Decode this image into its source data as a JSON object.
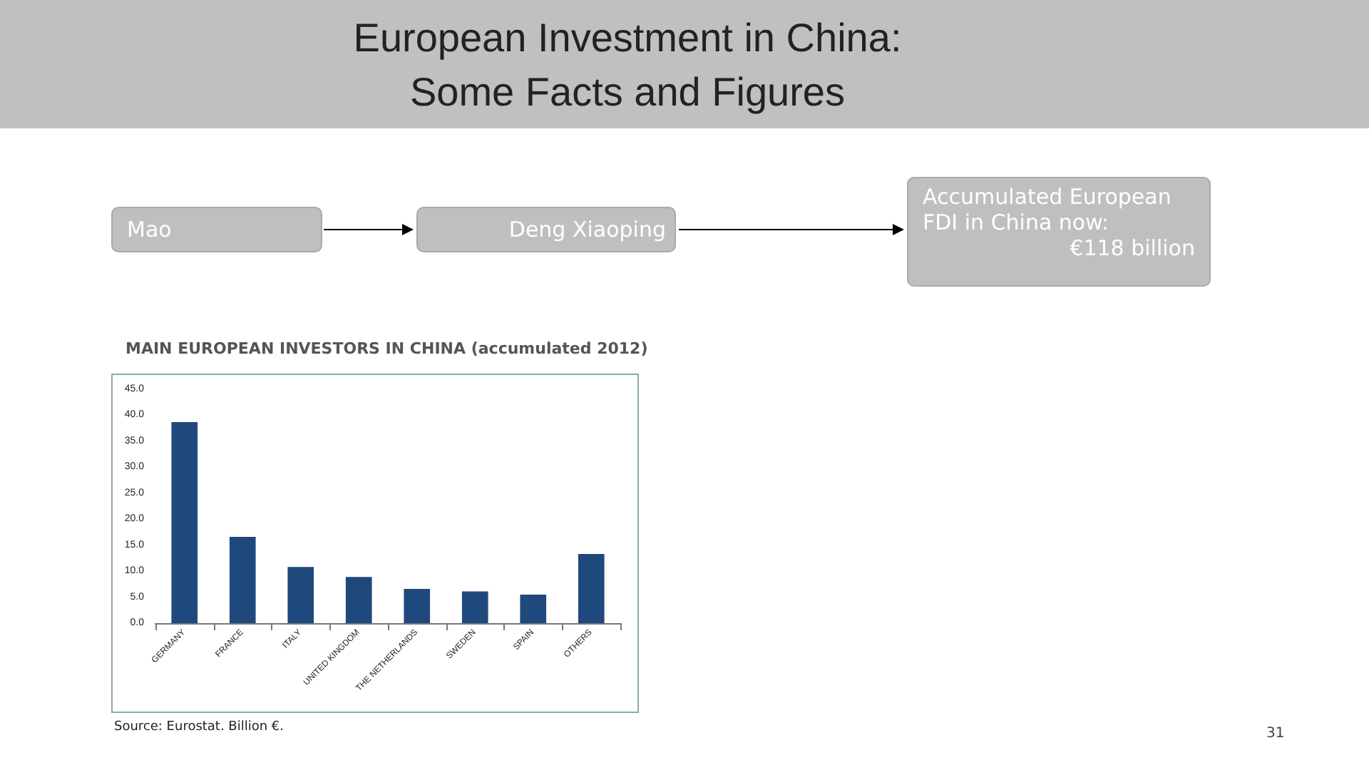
{
  "chart_data": {
    "type": "bar",
    "title": "European Investment in China:\nSome Facts and Figures",
    "subtitle": "MAIN EUROPEAN INVESTORS IN CHINA (accumulated 2012)",
    "categories": [
      "GERMANY",
      "FRANCE",
      "ITALY",
      "UNITED KINGDOM",
      "THE NETHERLANDS",
      "SWEDEN",
      "SPAIN",
      "OTHERS"
    ],
    "values": [
      38.7,
      16.6,
      10.8,
      8.9,
      6.6,
      6.1,
      5.5,
      13.3
    ],
    "color": "#1f497d",
    "ylim": [
      0,
      45
    ],
    "yticks": [
      {
        "value": 0,
        "label": "0.0"
      },
      {
        "value": 5,
        "label": "5.0"
      },
      {
        "value": 10,
        "label": "10.0"
      },
      {
        "value": 15,
        "label": "15.0"
      },
      {
        "value": 20,
        "label": "20.0"
      },
      {
        "value": 25,
        "label": "25.0"
      },
      {
        "value": 30,
        "label": "30.0"
      },
      {
        "value": 35,
        "label": "35.0"
      },
      {
        "value": 40,
        "label": "40.0"
      },
      {
        "value": 45,
        "label": "45.0"
      }
    ],
    "grid": false,
    "annotations": [
      "Mao",
      "Deng Xiaoping",
      "Accumulated European FDI in China now:",
      "€118 billion",
      "Source: Eurostat. Billion €.",
      "31"
    ]
  }
}
